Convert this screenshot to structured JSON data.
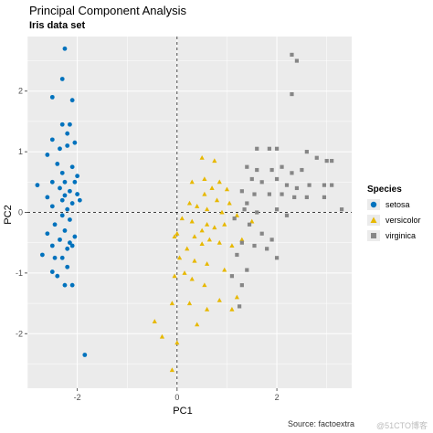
{
  "title": "Principal Component Analysis",
  "subtitle": "Iris data set",
  "caption": "Source: factoextra",
  "watermark": "@51CTO博客",
  "chart_data": {
    "type": "scatter",
    "xlabel": "PC1",
    "ylabel": "PC2",
    "xlim": [
      -3.0,
      3.5
    ],
    "ylim": [
      -2.9,
      2.9
    ],
    "x_ticks": [
      -2,
      0,
      2
    ],
    "y_ticks": [
      -2,
      -1,
      0,
      1,
      2
    ],
    "grid": true,
    "reference_lines": {
      "x": 0,
      "y": 0
    },
    "legend": {
      "title": "Species",
      "placement": "right"
    },
    "colors": {
      "setosa": "#0072BD",
      "versicolor": "#E7B800",
      "virginica": "#868686",
      "panel": "#EBEBEB",
      "grid": "#ffffff"
    },
    "series": [
      {
        "name": "setosa",
        "marker": "circle",
        "points": [
          [
            -2.25,
            2.7
          ],
          [
            -2.3,
            2.2
          ],
          [
            -2.5,
            1.9
          ],
          [
            -2.1,
            1.85
          ],
          [
            -2.15,
            1.45
          ],
          [
            -2.3,
            1.45
          ],
          [
            -2.2,
            1.3
          ],
          [
            -2.5,
            1.2
          ],
          [
            -2.2,
            1.1
          ],
          [
            -2.05,
            1.15
          ],
          [
            -2.35,
            1.05
          ],
          [
            -2.6,
            0.95
          ],
          [
            -2.4,
            0.8
          ],
          [
            -2.1,
            0.75
          ],
          [
            -2.3,
            0.65
          ],
          [
            -2.0,
            0.6
          ],
          [
            -2.5,
            0.5
          ],
          [
            -2.25,
            0.5
          ],
          [
            -2.05,
            0.5
          ],
          [
            -2.35,
            0.4
          ],
          [
            -2.15,
            0.35
          ],
          [
            -2.25,
            0.28
          ],
          [
            -2.0,
            0.3
          ],
          [
            -2.3,
            0.2
          ],
          [
            -1.95,
            0.2
          ],
          [
            -2.1,
            0.15
          ],
          [
            -2.5,
            0.1
          ],
          [
            -2.2,
            0.05
          ],
          [
            -2.8,
            0.45
          ],
          [
            -2.6,
            0.25
          ],
          [
            -2.3,
            -0.05
          ],
          [
            -2.15,
            -0.12
          ],
          [
            -2.45,
            -0.2
          ],
          [
            -2.6,
            -0.35
          ],
          [
            -2.25,
            -0.3
          ],
          [
            -2.05,
            -0.4
          ],
          [
            -2.35,
            -0.45
          ],
          [
            -2.15,
            -0.5
          ],
          [
            -2.5,
            -0.55
          ],
          [
            -2.2,
            -0.6
          ],
          [
            -2.1,
            -0.55
          ],
          [
            -2.45,
            -0.75
          ],
          [
            -2.3,
            -0.75
          ],
          [
            -2.7,
            -0.7
          ],
          [
            -2.2,
            -0.9
          ],
          [
            -2.5,
            -0.98
          ],
          [
            -2.4,
            -1.05
          ],
          [
            -2.25,
            -1.2
          ],
          [
            -2.1,
            -1.2
          ],
          [
            -1.85,
            -2.35
          ]
        ]
      },
      {
        "name": "versicolor",
        "marker": "triangle",
        "points": [
          [
            0.5,
            0.9
          ],
          [
            0.75,
            0.85
          ],
          [
            0.3,
            0.5
          ],
          [
            0.55,
            0.55
          ],
          [
            0.85,
            0.5
          ],
          [
            0.7,
            0.4
          ],
          [
            1.0,
            0.38
          ],
          [
            0.55,
            0.3
          ],
          [
            0.8,
            0.2
          ],
          [
            0.25,
            0.15
          ],
          [
            0.4,
            0.1
          ],
          [
            0.6,
            0.05
          ],
          [
            0.9,
            0.0
          ],
          [
            1.05,
            0.15
          ],
          [
            0.1,
            -0.1
          ],
          [
            0.3,
            -0.15
          ],
          [
            0.6,
            -0.2
          ],
          [
            0.75,
            -0.25
          ],
          [
            0.5,
            -0.3
          ],
          [
            0.95,
            -0.2
          ],
          [
            1.2,
            -0.05
          ],
          [
            0.0,
            -0.35
          ],
          [
            0.35,
            -0.4
          ],
          [
            0.65,
            -0.45
          ],
          [
            0.85,
            -0.5
          ],
          [
            0.5,
            -0.52
          ],
          [
            0.2,
            -0.6
          ],
          [
            1.1,
            -0.55
          ],
          [
            1.3,
            -0.45
          ],
          [
            0.05,
            -0.75
          ],
          [
            0.35,
            -0.8
          ],
          [
            0.6,
            -0.85
          ],
          [
            0.95,
            -0.95
          ],
          [
            0.15,
            -1.0
          ],
          [
            0.3,
            -1.1
          ],
          [
            0.55,
            -1.2
          ],
          [
            0.85,
            -1.45
          ],
          [
            1.1,
            -1.6
          ],
          [
            0.25,
            -1.5
          ],
          [
            0.6,
            -1.6
          ],
          [
            0.4,
            -1.85
          ],
          [
            -0.45,
            -1.8
          ],
          [
            -0.3,
            -2.05
          ],
          [
            -0.1,
            -1.5
          ],
          [
            -0.05,
            -0.4
          ],
          [
            -0.05,
            -1.05
          ],
          [
            1.5,
            -0.15
          ],
          [
            1.2,
            -1.4
          ],
          [
            0.0,
            -2.15
          ],
          [
            -0.1,
            -2.6
          ]
        ]
      },
      {
        "name": "virginica",
        "marker": "square",
        "points": [
          [
            2.3,
            2.6
          ],
          [
            2.4,
            2.5
          ],
          [
            2.3,
            1.95
          ],
          [
            1.6,
            1.05
          ],
          [
            1.85,
            1.05
          ],
          [
            2.0,
            1.05
          ],
          [
            2.6,
            1.0
          ],
          [
            2.8,
            0.9
          ],
          [
            3.0,
            0.85
          ],
          [
            3.1,
            0.85
          ],
          [
            1.4,
            0.75
          ],
          [
            1.6,
            0.7
          ],
          [
            1.9,
            0.7
          ],
          [
            2.1,
            0.75
          ],
          [
            2.3,
            0.65
          ],
          [
            2.5,
            0.7
          ],
          [
            1.5,
            0.55
          ],
          [
            1.7,
            0.5
          ],
          [
            2.0,
            0.55
          ],
          [
            2.2,
            0.45
          ],
          [
            2.4,
            0.4
          ],
          [
            2.65,
            0.45
          ],
          [
            2.95,
            0.45
          ],
          [
            3.1,
            0.45
          ],
          [
            1.3,
            0.35
          ],
          [
            1.55,
            0.3
          ],
          [
            1.85,
            0.3
          ],
          [
            2.1,
            0.3
          ],
          [
            2.35,
            0.25
          ],
          [
            2.6,
            0.25
          ],
          [
            2.95,
            0.25
          ],
          [
            3.3,
            0.05
          ],
          [
            1.35,
            0.05
          ],
          [
            1.6,
            0.0
          ],
          [
            2.0,
            0.05
          ],
          [
            2.2,
            -0.05
          ],
          [
            1.15,
            -0.1
          ],
          [
            1.45,
            -0.2
          ],
          [
            1.7,
            -0.35
          ],
          [
            1.9,
            -0.45
          ],
          [
            1.3,
            -0.5
          ],
          [
            1.55,
            -0.55
          ],
          [
            1.8,
            -0.6
          ],
          [
            2.0,
            -0.75
          ],
          [
            1.2,
            -0.7
          ],
          [
            1.4,
            -0.95
          ],
          [
            1.1,
            -1.05
          ],
          [
            1.3,
            -1.2
          ],
          [
            1.25,
            -1.55
          ],
          [
            1.4,
            0.15
          ]
        ]
      }
    ]
  }
}
